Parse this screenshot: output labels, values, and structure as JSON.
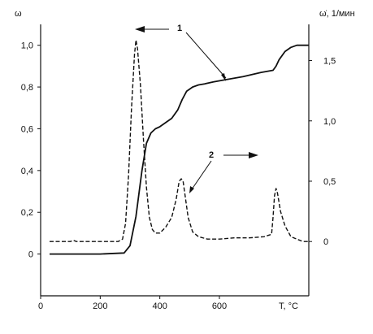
{
  "chart_data": {
    "type": "line",
    "title": "",
    "xlabel": "T, °C",
    "ylabel_left": "ω",
    "ylabel_right": "ω̇, 1/мин",
    "xlim": [
      0,
      900
    ],
    "ylim_left": [
      -0.2,
      1.1
    ],
    "ylim_right": [
      -0.45,
      1.8
    ],
    "x_ticks": [
      "0",
      "200",
      "400",
      "600"
    ],
    "y_left_ticks": [
      "0",
      "0,2",
      "0,4",
      "0,6",
      "0,8",
      "1,0"
    ],
    "y_right_ticks": [
      "0",
      "0,5",
      "1,0",
      "1,5"
    ],
    "grid": false,
    "series": [
      {
        "name": "1",
        "axis": "left",
        "style": "solid",
        "x": [
          30,
          100,
          200,
          280,
          300,
          320,
          340,
          355,
          370,
          385,
          400,
          420,
          440,
          460,
          475,
          490,
          510,
          530,
          550,
          580,
          620,
          680,
          740,
          780,
          790,
          800,
          820,
          840,
          860,
          880,
          900
        ],
        "y": [
          0.0,
          0.0,
          0.0,
          0.005,
          0.04,
          0.18,
          0.4,
          0.53,
          0.58,
          0.6,
          0.61,
          0.63,
          0.65,
          0.69,
          0.74,
          0.78,
          0.8,
          0.81,
          0.815,
          0.825,
          0.835,
          0.85,
          0.87,
          0.88,
          0.9,
          0.93,
          0.97,
          0.99,
          1.0,
          1.0,
          1.0
        ]
      },
      {
        "name": "2",
        "axis": "right",
        "style": "dashed",
        "x": [
          30,
          100,
          110,
          120,
          200,
          260,
          275,
          285,
          295,
          305,
          315,
          320,
          325,
          335,
          345,
          355,
          365,
          375,
          385,
          400,
          420,
          440,
          455,
          465,
          472,
          478,
          485,
          495,
          510,
          530,
          560,
          600,
          650,
          700,
          750,
          775,
          780,
          785,
          790,
          795,
          805,
          820,
          840,
          880,
          900
        ],
        "y": [
          0.0,
          0.0,
          0.01,
          0.0,
          0.0,
          0.0,
          0.02,
          0.15,
          0.55,
          1.1,
          1.55,
          1.67,
          1.6,
          1.3,
          0.85,
          0.45,
          0.2,
          0.1,
          0.07,
          0.07,
          0.12,
          0.2,
          0.35,
          0.5,
          0.52,
          0.5,
          0.38,
          0.2,
          0.08,
          0.04,
          0.02,
          0.02,
          0.03,
          0.03,
          0.04,
          0.06,
          0.2,
          0.38,
          0.44,
          0.4,
          0.25,
          0.13,
          0.04,
          0.0,
          0.0
        ]
      }
    ],
    "annotations": [
      {
        "label": "1",
        "target_series": "1",
        "axis_arrow": "left"
      },
      {
        "label": "2",
        "target_series": "2",
        "axis_arrow": "right"
      }
    ]
  }
}
